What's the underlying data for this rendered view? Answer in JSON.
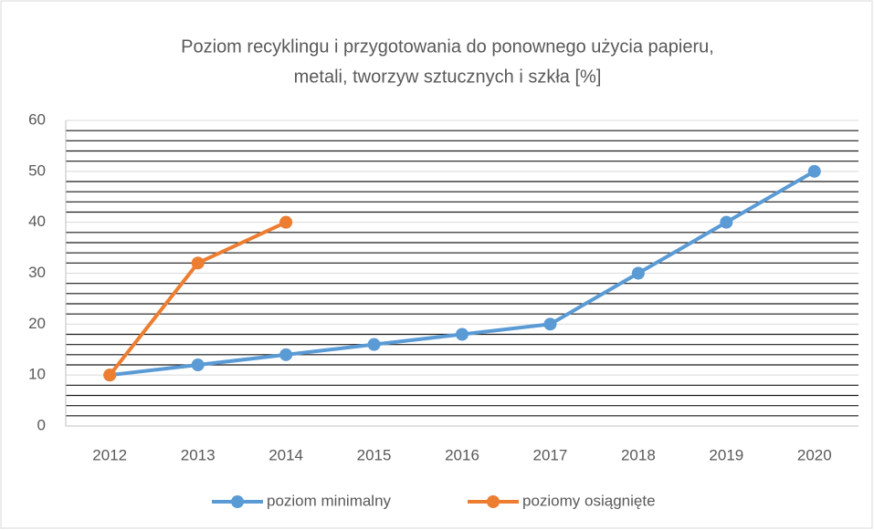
{
  "chart_data": {
    "type": "line",
    "title": [
      "Poziom recyklingu i przygotowania do ponownego użycia papieru,",
      "metali, tworzyw sztucznych i szkła [%]"
    ],
    "categories": [
      "2012",
      "2013",
      "2014",
      "2015",
      "2016",
      "2017",
      "2018",
      "2019",
      "2020"
    ],
    "series": [
      {
        "name": "poziom minimalny",
        "color": "#5b9bd5",
        "values": [
          10,
          12,
          14,
          16,
          18,
          20,
          30,
          40,
          50
        ]
      },
      {
        "name": "poziomy osiągnięte",
        "color": "#ed7d31",
        "values": [
          10,
          32,
          40,
          null,
          null,
          null,
          null,
          null,
          null
        ]
      }
    ],
    "ylim": [
      0,
      60
    ],
    "yticks": [
      0,
      10,
      20,
      30,
      40,
      50,
      60
    ],
    "minor_yticks": [
      2,
      4,
      6,
      8,
      12,
      14,
      16,
      18,
      22,
      24,
      26,
      28,
      32,
      34,
      36,
      38,
      42,
      44,
      46,
      48,
      52,
      54,
      56,
      58
    ],
    "grid": true,
    "legend": "bottom"
  }
}
